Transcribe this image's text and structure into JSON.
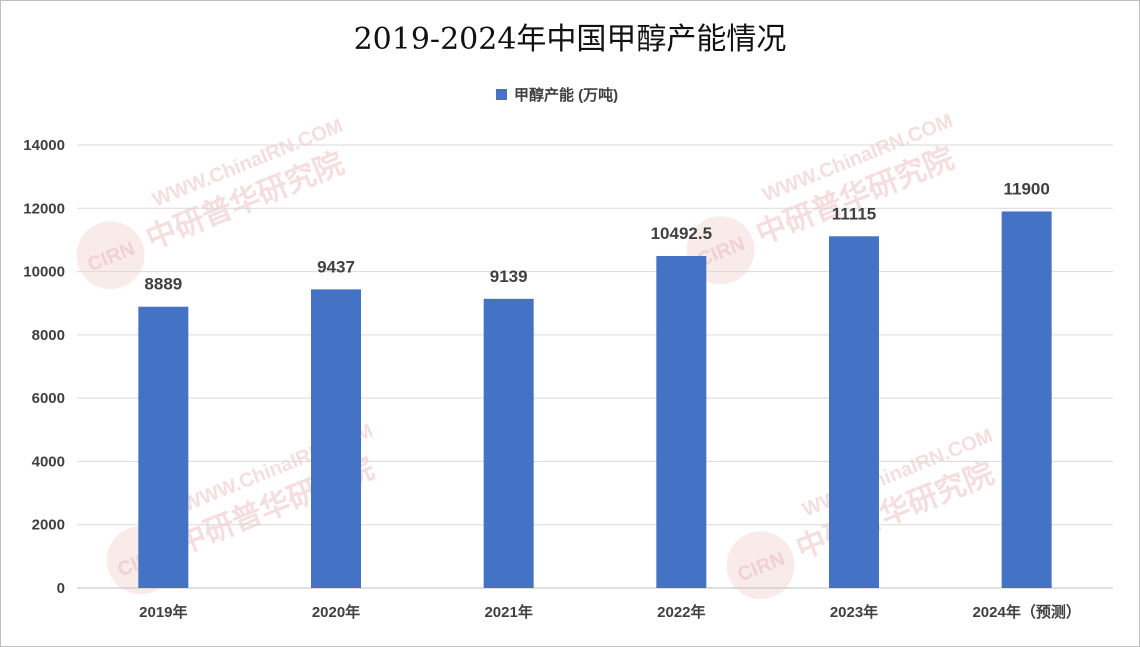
{
  "chart_data": {
    "type": "bar",
    "title": "2019-2024年中国甲醇产能情况",
    "categories": [
      "2019年",
      "2020年",
      "2021年",
      "2022年",
      "2023年",
      "2024年（预测）"
    ],
    "series": [
      {
        "name": "甲醇产能 (万吨)",
        "values": [
          8889,
          9437,
          9139,
          10492.5,
          11115,
          11900
        ],
        "data_labels": [
          "8889",
          "9437",
          "9139",
          "10492.5",
          "11115",
          "11900"
        ]
      }
    ],
    "ylim": [
      0,
      14000
    ],
    "yticks": [
      0,
      2000,
      4000,
      6000,
      8000,
      10000,
      12000,
      14000
    ],
    "grid": true,
    "legend_position": "top-center",
    "bar_color": "#4472c4"
  },
  "watermark": {
    "text": "中研普华研究院",
    "url": "WWW.ChinaIRN.COM",
    "logo": "CIRN"
  }
}
